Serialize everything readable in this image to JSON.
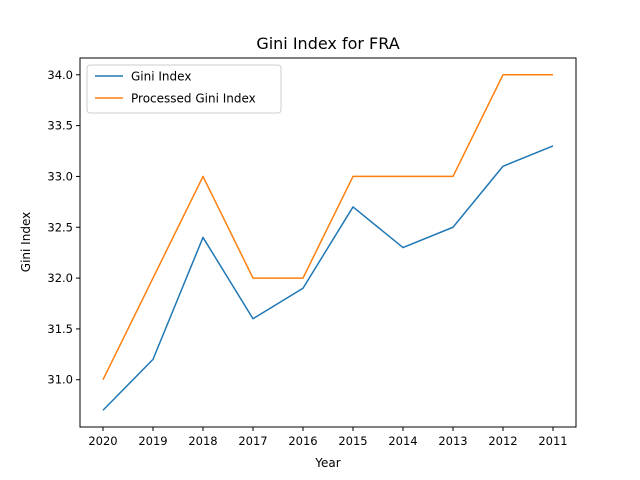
{
  "chart_data": {
    "type": "line",
    "title": "Gini Index for FRA",
    "xlabel": "Year",
    "ylabel": "Gini Index",
    "categories": [
      "2020",
      "2019",
      "2018",
      "2017",
      "2016",
      "2015",
      "2014",
      "2013",
      "2012",
      "2011"
    ],
    "series": [
      {
        "name": "Gini Index",
        "color": "#1f77b4",
        "values": [
          30.7,
          31.2,
          32.4,
          31.6,
          31.9,
          32.7,
          32.3,
          32.5,
          33.1,
          33.3
        ]
      },
      {
        "name": "Processed Gini Index",
        "color": "#ff7f0e",
        "values": [
          31.0,
          32.0,
          33.0,
          32.0,
          32.0,
          33.0,
          33.0,
          33.0,
          34.0,
          34.0
        ]
      }
    ],
    "yticks": [
      "31.0",
      "31.5",
      "32.0",
      "32.5",
      "33.0",
      "33.5",
      "34.0"
    ],
    "ylim": [
      30.535,
      34.165
    ],
    "legend_position": "top-left",
    "grid": false
  }
}
